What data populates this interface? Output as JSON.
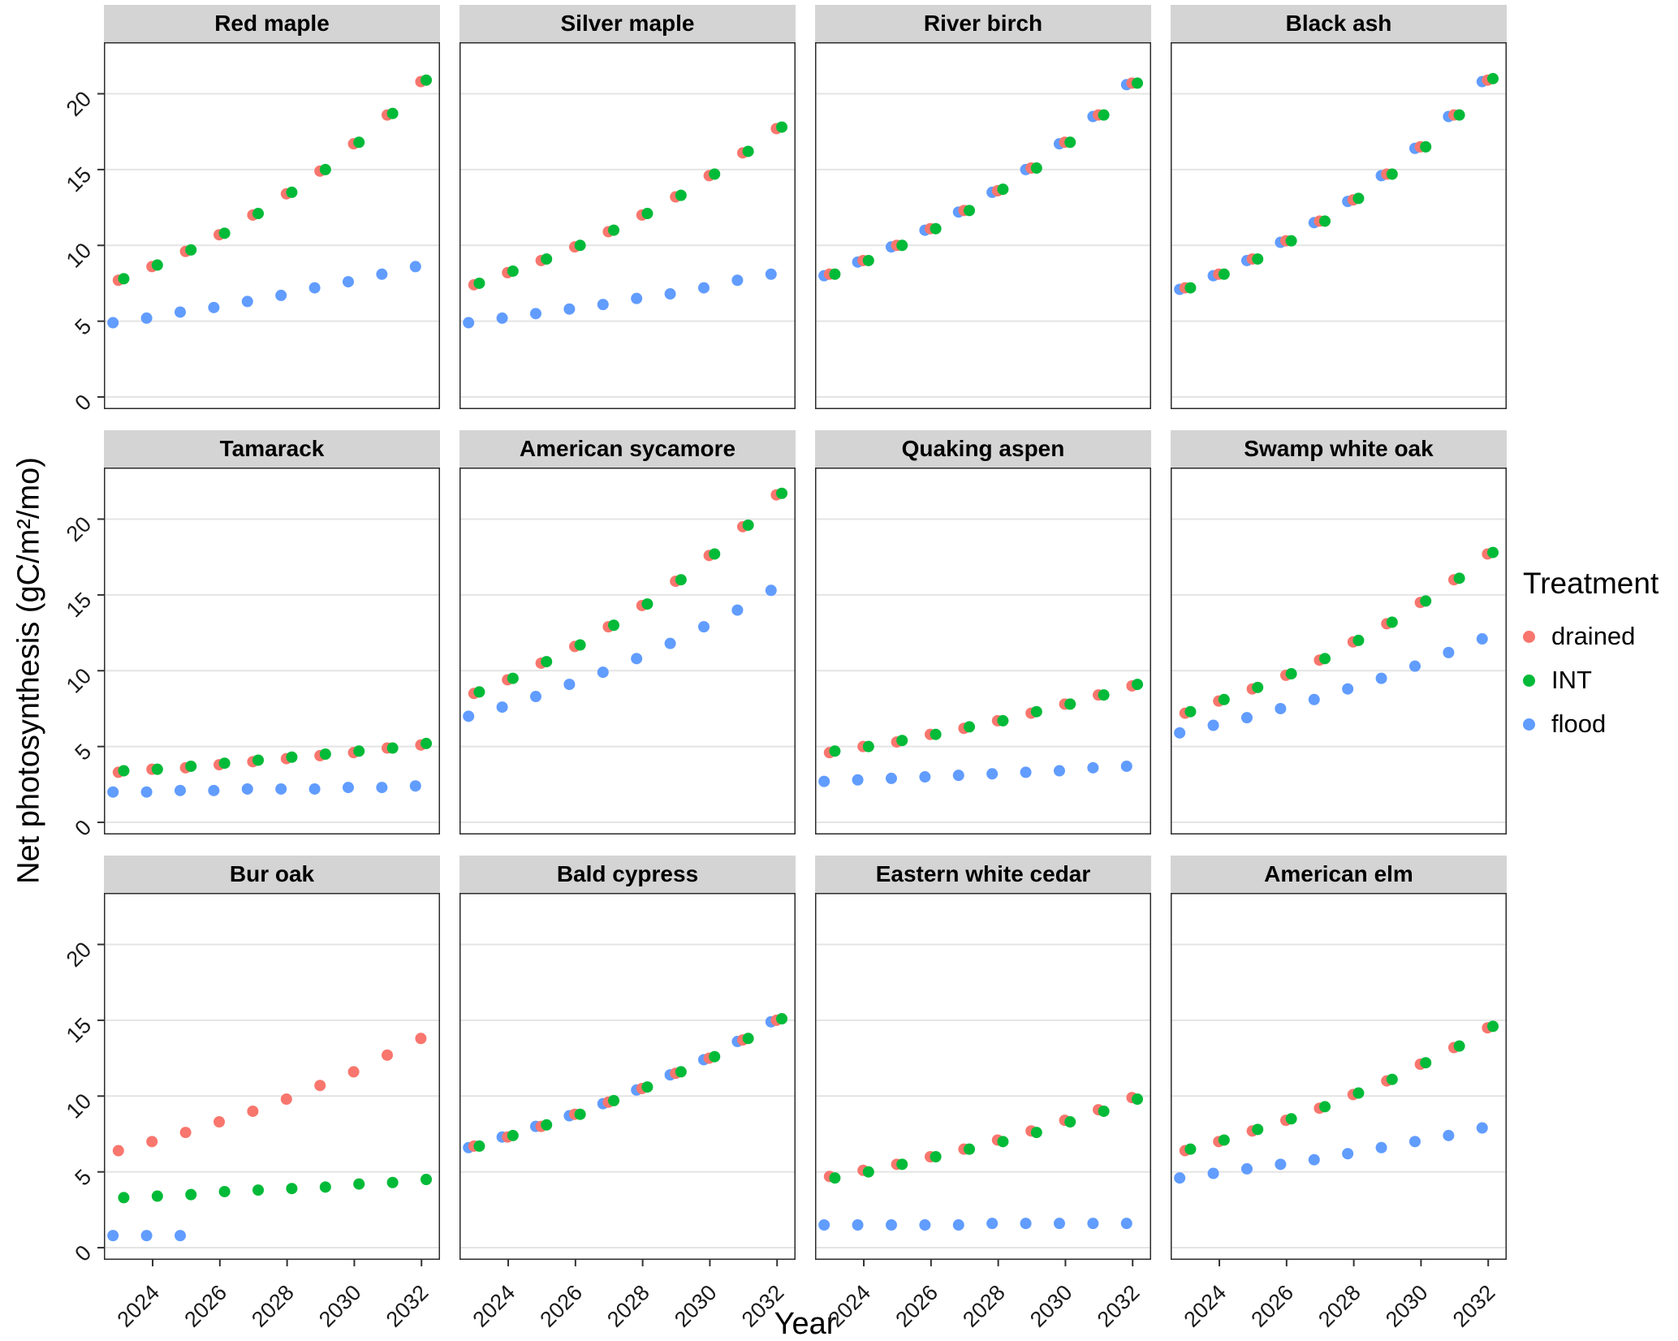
{
  "figure": {
    "y_axis_title": "Net photosynthesis (gC/m²/mo)",
    "x_axis_title": "Year",
    "legend": {
      "title": "Treatment",
      "entries": [
        {
          "label": "drained",
          "color": "#F8766D"
        },
        {
          "label": "INT",
          "color": "#00BA38"
        },
        {
          "label": "flood",
          "color": "#619CFF"
        }
      ]
    }
  },
  "chart_data": {
    "type": "scatter",
    "x": [
      2023,
      2024,
      2025,
      2026,
      2027,
      2028,
      2029,
      2030,
      2031,
      2032
    ],
    "x_ticks": [
      2024,
      2026,
      2028,
      2030,
      2032
    ],
    "y_ticks": [
      0,
      5,
      10,
      15,
      20
    ],
    "xlabel": "Year",
    "ylabel": "Net photosynthesis (gC/m²/mo)",
    "ylim": [
      0,
      23
    ],
    "grid": "horizontal-major-only",
    "legend_position": "right",
    "panels": [
      {
        "title": "Red maple",
        "series": {
          "drained": [
            7.7,
            8.6,
            9.6,
            10.7,
            12.0,
            13.4,
            14.9,
            16.7,
            18.6,
            20.8
          ],
          "INT": [
            7.8,
            8.7,
            9.7,
            10.8,
            12.1,
            13.5,
            15.0,
            16.8,
            18.7,
            20.9
          ],
          "flood": [
            4.9,
            5.2,
            5.6,
            5.9,
            6.3,
            6.7,
            7.2,
            7.6,
            8.1,
            8.6
          ]
        }
      },
      {
        "title": "Silver maple",
        "series": {
          "drained": [
            7.4,
            8.2,
            9.0,
            9.9,
            10.9,
            12.0,
            13.2,
            14.6,
            16.1,
            17.7
          ],
          "INT": [
            7.5,
            8.3,
            9.1,
            10.0,
            11.0,
            12.1,
            13.3,
            14.7,
            16.2,
            17.8
          ],
          "flood": [
            4.9,
            5.2,
            5.5,
            5.8,
            6.1,
            6.5,
            6.8,
            7.2,
            7.7,
            8.1
          ]
        }
      },
      {
        "title": "River birch",
        "series": {
          "drained": [
            8.1,
            9.0,
            10.0,
            11.1,
            12.3,
            13.6,
            15.1,
            16.8,
            18.6,
            20.7
          ],
          "INT": [
            8.1,
            9.0,
            10.0,
            11.1,
            12.3,
            13.7,
            15.1,
            16.8,
            18.6,
            20.7
          ],
          "flood": [
            8.0,
            8.9,
            9.9,
            11.0,
            12.2,
            13.5,
            15.0,
            16.7,
            18.5,
            20.6
          ]
        }
      },
      {
        "title": "Black ash",
        "series": {
          "drained": [
            7.2,
            8.1,
            9.1,
            10.3,
            11.6,
            13.0,
            14.7,
            16.5,
            18.6,
            20.9
          ],
          "INT": [
            7.2,
            8.1,
            9.1,
            10.3,
            11.6,
            13.1,
            14.7,
            16.5,
            18.6,
            21.0
          ],
          "flood": [
            7.1,
            8.0,
            9.0,
            10.2,
            11.5,
            12.9,
            14.6,
            16.4,
            18.5,
            20.8
          ]
        }
      },
      {
        "title": "Tamarack",
        "series": {
          "drained": [
            3.3,
            3.5,
            3.6,
            3.8,
            4.0,
            4.2,
            4.4,
            4.6,
            4.9,
            5.1
          ],
          "INT": [
            3.4,
            3.5,
            3.7,
            3.9,
            4.1,
            4.3,
            4.5,
            4.7,
            4.9,
            5.2
          ],
          "flood": [
            2.0,
            2.0,
            2.1,
            2.1,
            2.2,
            2.2,
            2.2,
            2.3,
            2.3,
            2.4
          ]
        }
      },
      {
        "title": "American sycamore",
        "series": {
          "drained": [
            8.5,
            9.4,
            10.5,
            11.6,
            12.9,
            14.3,
            15.9,
            17.6,
            19.5,
            21.6
          ],
          "INT": [
            8.6,
            9.5,
            10.6,
            11.7,
            13.0,
            14.4,
            16.0,
            17.7,
            19.6,
            21.7
          ],
          "flood": [
            7.0,
            7.6,
            8.3,
            9.1,
            9.9,
            10.8,
            11.8,
            12.9,
            14.0,
            15.3
          ]
        }
      },
      {
        "title": "Quaking aspen",
        "series": {
          "drained": [
            4.6,
            5.0,
            5.3,
            5.8,
            6.2,
            6.7,
            7.2,
            7.8,
            8.4,
            9.0
          ],
          "INT": [
            4.7,
            5.0,
            5.4,
            5.8,
            6.3,
            6.7,
            7.3,
            7.8,
            8.4,
            9.1
          ],
          "flood": [
            2.7,
            2.8,
            2.9,
            3.0,
            3.1,
            3.2,
            3.3,
            3.4,
            3.6,
            3.7
          ]
        }
      },
      {
        "title": "Swamp white oak",
        "series": {
          "drained": [
            7.2,
            8.0,
            8.8,
            9.7,
            10.7,
            11.9,
            13.1,
            14.5,
            16.0,
            17.7
          ],
          "INT": [
            7.3,
            8.1,
            8.9,
            9.8,
            10.8,
            12.0,
            13.2,
            14.6,
            16.1,
            17.8
          ],
          "flood": [
            5.9,
            6.4,
            6.9,
            7.5,
            8.1,
            8.8,
            9.5,
            10.3,
            11.2,
            12.1
          ]
        }
      },
      {
        "title": "Bur oak",
        "series": {
          "drained": [
            6.4,
            7.0,
            7.6,
            8.3,
            9.0,
            9.8,
            10.7,
            11.6,
            12.7,
            13.8
          ],
          "INT": [
            3.3,
            3.4,
            3.5,
            3.7,
            3.8,
            3.9,
            4.0,
            4.2,
            4.3,
            4.5
          ],
          "flood": [
            0.8,
            0.8,
            0.8,
            null,
            null,
            null,
            null,
            null,
            null,
            null
          ]
        }
      },
      {
        "title": "Bald cypress",
        "series": {
          "drained": [
            6.7,
            7.3,
            8.0,
            8.8,
            9.6,
            10.5,
            11.5,
            12.5,
            13.7,
            15.0
          ],
          "INT": [
            6.7,
            7.4,
            8.1,
            8.8,
            9.7,
            10.6,
            11.6,
            12.6,
            13.8,
            15.1
          ],
          "flood": [
            6.6,
            7.3,
            8.0,
            8.7,
            9.5,
            10.4,
            11.4,
            12.4,
            13.6,
            14.9
          ]
        }
      },
      {
        "title": "Eastern white cedar",
        "series": {
          "drained": [
            4.7,
            5.1,
            5.5,
            6.0,
            6.5,
            7.1,
            7.7,
            8.4,
            9.1,
            9.9
          ],
          "INT": [
            4.6,
            5.0,
            5.5,
            6.0,
            6.5,
            7.0,
            7.6,
            8.3,
            9.0,
            9.8
          ],
          "flood": [
            1.5,
            1.5,
            1.5,
            1.5,
            1.5,
            1.6,
            1.6,
            1.6,
            1.6,
            1.6
          ]
        }
      },
      {
        "title": "American elm",
        "series": {
          "drained": [
            6.4,
            7.0,
            7.7,
            8.4,
            9.2,
            10.1,
            11.0,
            12.1,
            13.2,
            14.5
          ],
          "INT": [
            6.5,
            7.1,
            7.8,
            8.5,
            9.3,
            10.2,
            11.1,
            12.2,
            13.3,
            14.6
          ],
          "flood": [
            4.6,
            4.9,
            5.2,
            5.5,
            5.8,
            6.2,
            6.6,
            7.0,
            7.4,
            7.9
          ]
        }
      }
    ]
  }
}
